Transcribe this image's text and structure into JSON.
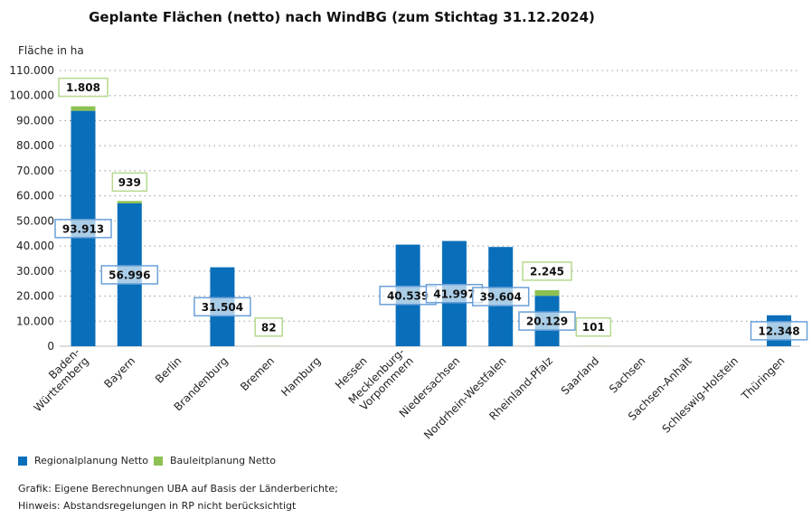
{
  "chart_data": {
    "type": "bar",
    "stacked": true,
    "title": "Geplante Flächen (netto) nach WindBG (zum Stichtag 31.12.2024)",
    "ylabel": "Fläche in ha",
    "xlabel": "",
    "ylim": [
      0,
      110000
    ],
    "yticks": [
      "0",
      "10.000",
      "20.000",
      "30.000",
      "40.000",
      "50.000",
      "60.000",
      "70.000",
      "80.000",
      "90.000",
      "100.000",
      "110.000"
    ],
    "grid": true,
    "legend_position": "bottom-left",
    "categories": [
      "Baden-\nWürttemberg",
      "Bayern",
      "Berlin",
      "Brandenburg",
      "Bremen",
      "Hamburg",
      "Hessen",
      "Mecklenburg-\nVorpommern",
      "Niedersachsen",
      "Nordrhein-Westfalen",
      "Rheinland-Pfalz",
      "Saarland",
      "Sachsen",
      "Sachsen-Anhalt",
      "Schleswig-Holstein",
      "Thüringen"
    ],
    "series": [
      {
        "name": "Regionalplanung Netto",
        "color": "#0a6fba",
        "values": [
          93913,
          56996,
          0,
          31504,
          0,
          0,
          0,
          40539,
          41997,
          39604,
          20129,
          0,
          0,
          0,
          0,
          12348
        ],
        "labels": [
          "93.913",
          "56.996",
          "",
          "31.504",
          "",
          "",
          "",
          "40.539",
          "41.997",
          "39.604",
          "20.129",
          "",
          "",
          "",
          "",
          "12.348"
        ]
      },
      {
        "name": "Bauleitplanung Netto",
        "color": "#8dc053",
        "values": [
          1808,
          939,
          0,
          0,
          82,
          0,
          0,
          0,
          0,
          0,
          2245,
          101,
          0,
          0,
          0,
          0
        ],
        "labels": [
          "1.808",
          "939",
          "",
          "",
          "82",
          "",
          "",
          "",
          "",
          "",
          "2.245",
          "101",
          "",
          "",
          "",
          ""
        ]
      }
    ]
  },
  "footer": {
    "line1": "Grafik: Eigene Berechnungen UBA auf Basis der Länderberichte;",
    "line2": "Hinweis: Abstandsregelungen in RP nicht berücksichtigt"
  }
}
